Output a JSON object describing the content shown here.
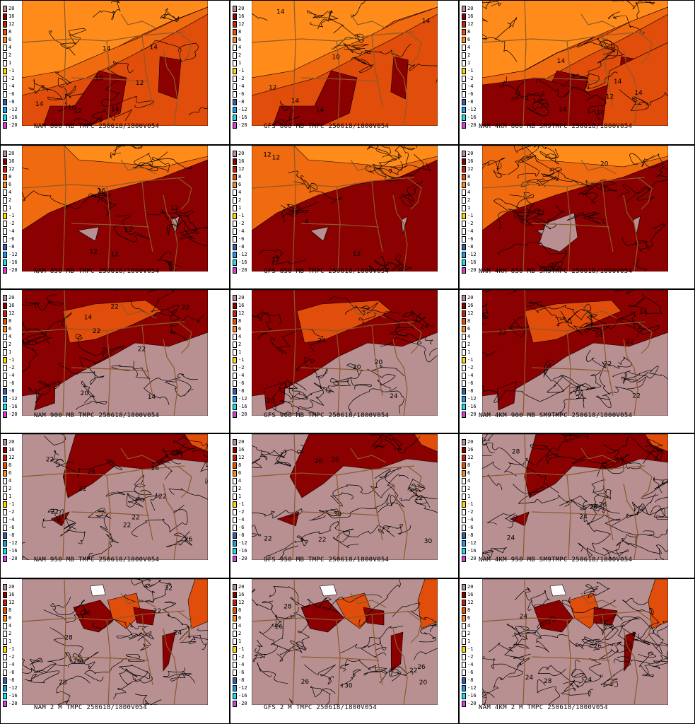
{
  "legend_levels": [
    "20",
    "16",
    "12",
    "8",
    "6",
    "4",
    "2",
    "1",
    "-1",
    "-2",
    "-4",
    "-6",
    "-8",
    "-12",
    "-16",
    "-20"
  ],
  "legend_colors": [
    "#b89092",
    "#8b0000",
    "#cc2200",
    "#e85200",
    "#ff8c1a",
    "#ffffff",
    "#ffffff",
    "#ffffff",
    "#ffd700",
    "#ffffff",
    "#ffffff",
    "#ffffff",
    "#3a5fb0",
    "#1aa0e0",
    "#18e0e8",
    "#cc44dd"
  ],
  "colors": {
    "t10": "#ff8c1a",
    "t12": "#f06a10",
    "t14": "#e14d0a",
    "t16": "#8b0000",
    "t20": "#b89092",
    "t30": "#ffffff",
    "contour": "#000000",
    "border": "#8b5a2b"
  },
  "panels": [
    {
      "caption": "NAM 800 MB TMPC 250618/1800V054",
      "labels": [
        "10",
        "10",
        "12",
        "14",
        "14",
        "14",
        "12",
        "14"
      ]
    },
    {
      "caption": "GFS 800 MB TMPC 250618/1800V054",
      "labels": [
        "10",
        "12",
        "14",
        "14",
        "14",
        "14"
      ]
    },
    {
      "caption": "NAM 4KM 800 MB SM9TMPC 250618/1800V054",
      "labels": [
        "10",
        "12",
        "14",
        "14",
        "14",
        "14",
        "14"
      ]
    },
    {
      "caption": "NAM 850 MB TMPC 250618/1800V054",
      "labels": [
        "12",
        "12",
        "12",
        "16",
        "12"
      ]
    },
    {
      "caption": "GFS 850 MB TMPC 250618/1800V054",
      "labels": [
        "12",
        "12",
        "12",
        "12",
        "4"
      ]
    },
    {
      "caption": "NAM 4KM 850 MB SM9TMPC 250618/1800V054",
      "labels": [
        "12",
        "20"
      ]
    },
    {
      "caption": "NAM 900 MB TMPC 250618/1800V054",
      "labels": [
        "22",
        "14",
        "14",
        "22",
        "22",
        "20",
        "22"
      ]
    },
    {
      "caption": "GFS 900 MB TMPC 250618/1800V054",
      "labels": [
        "20",
        "24",
        "24",
        "20",
        "24",
        "20"
      ]
    },
    {
      "caption": "NAM 4KM 900 MB SM9TMPC 250618/1800V054",
      "labels": [
        "14",
        "14",
        "22",
        "22",
        "22",
        "22"
      ]
    },
    {
      "caption": "NAM 950 MB TMPC 250618/1800V054",
      "labels": [
        "22",
        "22",
        "26",
        "26",
        "26",
        "22",
        "22",
        "22",
        "22"
      ]
    },
    {
      "caption": "GFS 950 MB TMPC 250618/1800V054",
      "labels": [
        "26",
        "22",
        "22",
        "30",
        "26",
        "22",
        "30"
      ]
    },
    {
      "caption": "NAM 4KM 950 MB SM9TMPC 250618/1800V054",
      "labels": [
        "24",
        "24",
        "24",
        "26",
        "28"
      ]
    },
    {
      "caption": "NAM 2 M TMPC 250618/1800V054",
      "labels": [
        "22",
        "26",
        "28",
        "26",
        "32",
        "24",
        "28"
      ]
    },
    {
      "caption": "GFS 2 M TMPC 250618/1800V054",
      "labels": [
        "26",
        "22",
        "26",
        "20",
        "30",
        "28",
        "26"
      ]
    },
    {
      "caption": "NAM 4KM 2 M TMPC 250618/1800V054",
      "labels": [
        "24",
        "24",
        "28",
        "26",
        "24"
      ]
    }
  ]
}
